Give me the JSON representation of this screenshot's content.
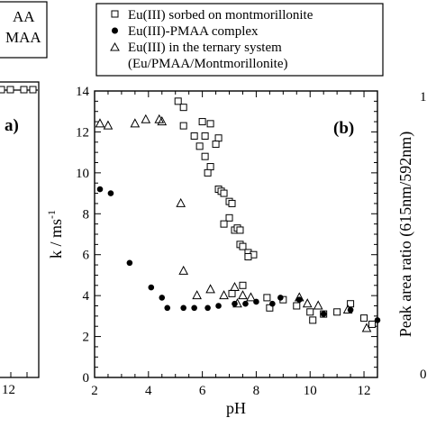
{
  "chart_data": [
    {
      "type": "line",
      "panel_label": "",
      "legend_partial": [
        "AA",
        "MAA"
      ],
      "tick_labels_visible": [
        "12"
      ],
      "note": ""
    },
    {
      "type": "scatter",
      "panel_label": "(b)",
      "xlabel": "pH",
      "ylabel": "k / ms",
      "ylabel_superscript": "-1",
      "xlim": [
        2,
        12.5
      ],
      "ylim": [
        0,
        14
      ],
      "xticks": [
        "2",
        "4",
        "6",
        "8",
        "10",
        "12"
      ],
      "yticks": [
        "0",
        "2",
        "4",
        "6",
        "8",
        "10",
        "12",
        "14"
      ],
      "grid": false,
      "legend_placement": "top",
      "series": [
        {
          "name": "Eu(III) sorbed on montmorillonite",
          "marker": "square-open",
          "points": [
            [
              5.1,
              13.5
            ],
            [
              5.3,
              13.2
            ],
            [
              5.3,
              12.3
            ],
            [
              6.0,
              12.5
            ],
            [
              6.3,
              12.4
            ],
            [
              5.7,
              11.8
            ],
            [
              6.1,
              11.8
            ],
            [
              6.6,
              11.7
            ],
            [
              6.5,
              11.4
            ],
            [
              5.9,
              11.3
            ],
            [
              6.1,
              10.8
            ],
            [
              6.3,
              10.3
            ],
            [
              6.2,
              10.0
            ],
            [
              6.6,
              9.2
            ],
            [
              6.7,
              9.1
            ],
            [
              6.8,
              9.0
            ],
            [
              7.0,
              8.6
            ],
            [
              7.1,
              8.5
            ],
            [
              7.0,
              7.8
            ],
            [
              6.8,
              7.5
            ],
            [
              7.2,
              7.2
            ],
            [
              7.3,
              7.3
            ],
            [
              7.4,
              7.2
            ],
            [
              7.4,
              6.5
            ],
            [
              7.5,
              6.4
            ],
            [
              7.7,
              6.1
            ],
            [
              7.9,
              6.0
            ],
            [
              7.7,
              5.9
            ],
            [
              7.5,
              4.5
            ],
            [
              7.1,
              4.1
            ],
            [
              8.4,
              3.9
            ],
            [
              8.5,
              3.4
            ],
            [
              9.0,
              3.8
            ],
            [
              9.5,
              3.5
            ],
            [
              10.0,
              3.2
            ],
            [
              10.1,
              2.8
            ],
            [
              10.5,
              3.1
            ],
            [
              11.0,
              3.2
            ],
            [
              11.5,
              3.6
            ],
            [
              12.0,
              2.9
            ],
            [
              12.3,
              2.6
            ]
          ]
        },
        {
          "name": "Eu(III)-PMAA complex",
          "marker": "circle-filled",
          "points": [
            [
              2.2,
              9.2
            ],
            [
              2.6,
              9.0
            ],
            [
              3.3,
              5.6
            ],
            [
              4.1,
              4.4
            ],
            [
              4.5,
              3.9
            ],
            [
              4.7,
              3.4
            ],
            [
              5.3,
              3.4
            ],
            [
              5.7,
              3.4
            ],
            [
              6.2,
              3.4
            ],
            [
              6.6,
              3.5
            ],
            [
              7.2,
              3.6
            ],
            [
              7.6,
              3.6
            ],
            [
              8.0,
              3.7
            ],
            [
              8.6,
              3.6
            ],
            [
              8.9,
              3.9
            ],
            [
              9.6,
              3.8
            ],
            [
              10.5,
              3.1
            ],
            [
              11.5,
              3.3
            ],
            [
              12.5,
              2.8
            ]
          ]
        },
        {
          "name": "Eu(III) in the ternary system",
          "name_line2": "(Eu/PMAA/Montmorillonite)",
          "marker": "triangle-open",
          "points": [
            [
              2.2,
              12.4
            ],
            [
              2.5,
              12.3
            ],
            [
              3.5,
              12.4
            ],
            [
              3.9,
              12.6
            ],
            [
              4.4,
              12.6
            ],
            [
              4.5,
              12.5
            ],
            [
              5.2,
              8.5
            ],
            [
              5.3,
              5.2
            ],
            [
              5.8,
              4.0
            ],
            [
              6.3,
              4.3
            ],
            [
              6.8,
              4.0
            ],
            [
              7.2,
              4.4
            ],
            [
              7.5,
              4.0
            ],
            [
              7.3,
              3.6
            ],
            [
              7.8,
              3.9
            ],
            [
              9.6,
              3.9
            ],
            [
              9.9,
              3.6
            ],
            [
              10.3,
              3.5
            ],
            [
              11.4,
              3.3
            ],
            [
              12.1,
              2.4
            ]
          ]
        }
      ]
    },
    {
      "type": "scatter",
      "panel_label": "",
      "ylabel": "Peak area ratio (615nm/592nm)",
      "note": ""
    }
  ]
}
